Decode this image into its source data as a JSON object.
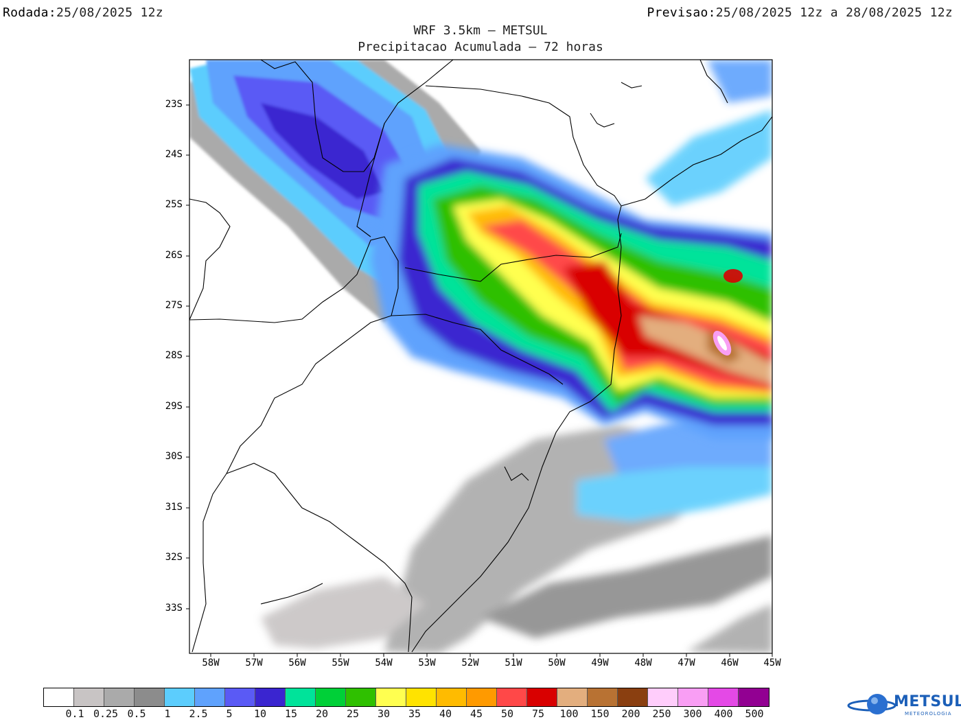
{
  "header": {
    "run_label": "Rodada:",
    "run_value": "25/08/2025 12z",
    "forecast_label": "Previsao:",
    "forecast_value": "25/08/2025 12z a 28/08/2025 12z"
  },
  "title": {
    "line1": "WRF 3.5km – METSUL",
    "line2": "Precipitacao Acumulada – 72 horas"
  },
  "axes": {
    "lat_labels": [
      "23S",
      "24S",
      "25S",
      "26S",
      "27S",
      "28S",
      "29S",
      "30S",
      "31S",
      "32S",
      "33S"
    ],
    "lon_labels": [
      "58W",
      "57W",
      "56W",
      "55W",
      "54W",
      "53W",
      "52W",
      "51W",
      "50W",
      "49W",
      "48W",
      "47W",
      "46W",
      "45W"
    ]
  },
  "legend": {
    "colors": [
      "#ffffff",
      "#c8c4c4",
      "#aaaaaa",
      "#8c8c8c",
      "#5ccdfd",
      "#5fa2fd",
      "#5a5af5",
      "#3a25d0",
      "#00e39a",
      "#00d038",
      "#2fc000",
      "#ffff50",
      "#ffe300",
      "#ffbb00",
      "#ff9a00",
      "#ff4848",
      "#d90000",
      "#e3ae7e",
      "#b87233",
      "#8a3f10",
      "#ffcdfb",
      "#f99ef4",
      "#e449e6",
      "#920092"
    ],
    "ticks": [
      "0.1",
      "0.25",
      "0.5",
      "1",
      "2.5",
      "5",
      "10",
      "15",
      "20",
      "25",
      "30",
      "35",
      "40",
      "45",
      "50",
      "75",
      "100",
      "150",
      "200",
      "250",
      "300",
      "400",
      "500"
    ]
  },
  "logo": {
    "name": "METSUL",
    "sub": "METEOROLOGIA"
  }
}
